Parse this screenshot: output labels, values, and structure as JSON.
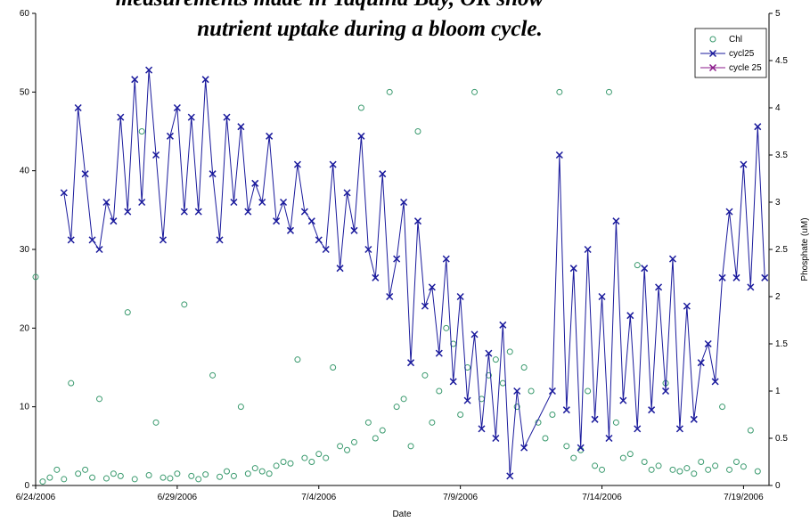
{
  "chart_data": {
    "type": "scatter",
    "title_lines": [
      "measurements made in Yaquina Bay, OR show",
      "nutrient uptake during a bloom cycle."
    ],
    "xlabel": "Date",
    "y2label": "Phosphate (uM)",
    "xlim": [
      38892,
      38917.9
    ],
    "xticks": [
      {
        "value": 38892,
        "label": "6/24/2006"
      },
      {
        "value": 38897,
        "label": "6/29/2006"
      },
      {
        "value": 38902,
        "label": "7/4/2006"
      },
      {
        "value": 38907,
        "label": "7/9/2006"
      },
      {
        "value": 38912,
        "label": "7/14/2006"
      },
      {
        "value": 38917,
        "label": "7/19/2006"
      }
    ],
    "ylim": [
      0,
      60
    ],
    "yticks": [
      0,
      10,
      20,
      30,
      40,
      50,
      60
    ],
    "y2lim": [
      0,
      5
    ],
    "y2ticks": [
      0,
      0.5,
      1,
      1.5,
      2,
      2.5,
      3,
      3.5,
      4,
      4.5,
      5
    ],
    "series": [
      {
        "name": "Chl",
        "color": "#3a9a6e",
        "mode": "markers",
        "x": [
          38892,
          38892.25,
          38892.5,
          38892.75,
          38893,
          38893.25,
          38893.5,
          38893.75,
          38894,
          38894.25,
          38894.5,
          38894.75,
          38895,
          38895.25,
          38895.5,
          38895.75,
          38896,
          38896.25,
          38896.5,
          38896.75,
          38897,
          38897.25,
          38897.5,
          38897.75,
          38898,
          38898.25,
          38898.5,
          38898.75,
          38899,
          38899.25,
          38899.5,
          38899.75,
          38900,
          38900.25,
          38900.5,
          38900.75,
          38901,
          38901.25,
          38901.5,
          38901.75,
          38902,
          38902.25,
          38902.5,
          38902.75,
          38903,
          38903.25,
          38903.5,
          38903.75,
          38904,
          38904.25,
          38904.5,
          38904.75,
          38905,
          38905.25,
          38905.5,
          38905.75,
          38906,
          38906.25,
          38906.5,
          38906.75,
          38907,
          38907.25,
          38907.5,
          38907.75,
          38908,
          38908.25,
          38908.5,
          38908.75,
          38909,
          38909.25,
          38909.5,
          38909.75,
          38910,
          38910.25,
          38910.5,
          38910.75,
          38911,
          38911.25,
          38911.5,
          38911.75,
          38912,
          38912.25,
          38912.5,
          38912.75,
          38913,
          38913.25,
          38913.5,
          38913.75,
          38914,
          38914.25,
          38914.5,
          38914.75,
          38915,
          38915.25,
          38915.5,
          38915.75,
          38916,
          38916.25,
          38916.5,
          38916.75,
          38917,
          38917.25,
          38917.5
        ],
        "values": [
          26.5,
          0.5,
          1,
          2,
          0.8,
          13,
          1.5,
          2,
          1,
          11,
          0.9,
          1.5,
          1.2,
          22,
          0.8,
          45,
          1.3,
          8,
          1,
          0.9,
          1.5,
          23,
          1.2,
          0.8,
          1.4,
          14,
          1.1,
          1.8,
          1.2,
          10,
          1.5,
          2.2,
          1.8,
          1.5,
          2.5,
          3,
          2.8,
          16,
          3.5,
          3,
          4,
          3.5,
          15,
          5,
          4.5,
          5.5,
          48,
          8,
          6,
          7,
          50,
          10,
          11,
          5,
          45,
          14,
          8,
          12,
          20,
          18,
          9,
          15,
          50,
          11,
          14,
          16,
          13,
          17,
          10,
          15,
          12,
          8,
          6,
          9,
          50,
          5,
          3.5,
          4.5,
          12,
          2.5,
          2,
          50,
          8,
          3.5,
          4,
          28,
          3,
          2,
          2.5,
          13,
          2,
          1.8,
          2.2,
          1.5,
          3,
          2,
          2.5,
          10,
          2,
          3,
          2.4,
          7,
          1.8
        ]
      },
      {
        "name": "cycl25",
        "color": "#1a1a9c",
        "mode": "lines+markers",
        "axis": "y2",
        "x": [
          38893,
          38893.25,
          38893.5,
          38893.75,
          38894,
          38894.25,
          38894.5,
          38894.75,
          38895,
          38895.25,
          38895.5,
          38895.75,
          38896,
          38896.25,
          38896.5,
          38896.75,
          38897,
          38897.25,
          38897.5,
          38897.75,
          38898,
          38898.25,
          38898.5,
          38898.75,
          38899,
          38899.25,
          38899.5,
          38899.75,
          38900,
          38900.25,
          38900.5,
          38900.75,
          38901,
          38901.25,
          38901.5,
          38901.75,
          38902,
          38902.25,
          38902.5,
          38902.75,
          38903,
          38903.25,
          38903.5,
          38903.75,
          38904,
          38904.25,
          38904.5,
          38904.75,
          38905,
          38905.25,
          38905.5,
          38905.75,
          38906,
          38906.25,
          38906.5,
          38906.75,
          38907,
          38907.25,
          38907.5,
          38907.75,
          38908,
          38908.25,
          38908.5,
          38908.75,
          38909,
          38909.25,
          38910.25,
          38910.5,
          38910.75,
          38911,
          38911.25,
          38911.5,
          38911.75,
          38912,
          38912.25,
          38912.5,
          38912.75,
          38913,
          38913.25,
          38913.5,
          38913.75,
          38914,
          38914.25,
          38914.5,
          38914.75,
          38915,
          38915.25,
          38915.5,
          38915.75,
          38916,
          38916.25,
          38916.5,
          38916.75,
          38917,
          38917.25,
          38917.5,
          38917.75
        ],
        "values": [
          3.1,
          2.6,
          4.0,
          3.3,
          2.6,
          2.5,
          3.0,
          2.8,
          3.9,
          2.9,
          4.3,
          3.0,
          4.4,
          3.5,
          2.6,
          3.7,
          4.0,
          2.9,
          3.9,
          2.9,
          4.3,
          3.3,
          2.6,
          3.9,
          3.0,
          3.8,
          2.9,
          3.2,
          3.0,
          3.7,
          2.8,
          3.0,
          2.7,
          3.4,
          2.9,
          2.8,
          2.6,
          2.5,
          3.4,
          2.3,
          3.1,
          2.7,
          3.7,
          2.5,
          2.2,
          3.3,
          2.0,
          2.4,
          3.0,
          1.3,
          2.8,
          1.9,
          2.1,
          1.4,
          2.4,
          1.1,
          2.0,
          0.9,
          1.6,
          0.6,
          1.4,
          0.5,
          1.7,
          0.1,
          1.0,
          0.4,
          1.0,
          3.5,
          0.8,
          2.3,
          0.4,
          2.5,
          0.7,
          2.0,
          0.5,
          2.8,
          0.9,
          1.8,
          0.6,
          2.3,
          0.8,
          2.1,
          1.0,
          2.4,
          0.6,
          1.9,
          0.7,
          1.3,
          1.5,
          1.1,
          2.2,
          2.9,
          2.2,
          3.4,
          2.1,
          3.8,
          2.2
        ]
      },
      {
        "name": "cycle 25",
        "color": "#8b1a8b",
        "mode": "lines+markers",
        "axis": "y2",
        "x": [],
        "values": []
      }
    ]
  }
}
